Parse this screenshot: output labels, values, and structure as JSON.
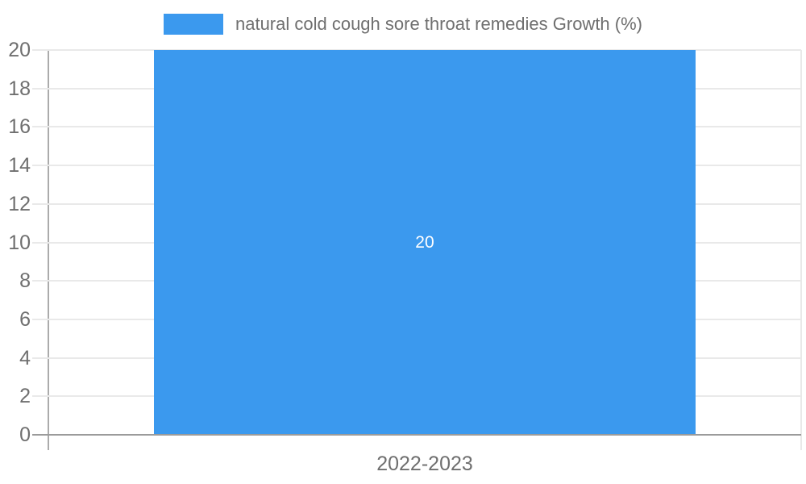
{
  "legend": {
    "label": "natural cold cough sore throat remedies Growth (%)"
  },
  "chart_data": {
    "type": "bar",
    "title": "",
    "xlabel": "",
    "ylabel": "",
    "categories": [
      "2022-2023"
    ],
    "series": [
      {
        "name": "natural cold cough sore throat remedies Growth (%)",
        "values": [
          20
        ]
      }
    ],
    "bar_value_labels": [
      "20"
    ],
    "ylim": [
      0,
      20
    ],
    "ytick_step": 2,
    "ytick_labels": [
      "0",
      "2",
      "4",
      "6",
      "8",
      "10",
      "12",
      "14",
      "16",
      "18",
      "20"
    ],
    "grid": true,
    "legend_position": "top-center"
  },
  "colors": {
    "bar": "#3b99ee",
    "bar_label": "#ffffff",
    "text": "#6f6f6f",
    "grid": "#e9e9e9",
    "axis": "#9b9b9b",
    "axis_y": "#ababab",
    "background": "#ffffff"
  }
}
